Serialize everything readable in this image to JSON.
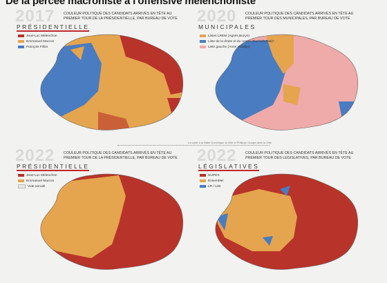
{
  "title": "De la percée macroniste à l'offensive mélenchoniste",
  "credit": "La carte à la Bâtie Dominique la Ville et Philippe Guapa dans la Ville",
  "colors": {
    "melenchon": "#b8332a",
    "macron": "#e5a44e",
    "fillon": "#4a7cc1",
    "union_gauche": "#efaaaa",
    "nupes": "#b8332a",
    "ensemble": "#e5a44e",
    "lr": "#4a7cc1",
    "vide": "#e8e8e8"
  },
  "panels": [
    {
      "year": "2017",
      "kind": "PRÉSIDENTIELLE",
      "description": "Couleur politique des candidats arrivés en tête au premier tour de la présidentielle, par bureau de vote",
      "legend": [
        {
          "label": "Jean-Luc Mélenchon",
          "color": "#b8332a"
        },
        {
          "label": "Emmanuel Macron",
          "color": "#e5a44e"
        },
        {
          "label": "François Fillon",
          "color": "#4a7cc1"
        }
      ]
    },
    {
      "year": "2020",
      "kind": "MUNICIPALES",
      "description": "Couleur politique des candidats arrivés en tête au premier tour des municipales, par bureau de vote",
      "legend": [
        {
          "label": "Listes LREM (Agnès Buzyn)",
          "color": "#e5a44e"
        },
        {
          "label": "Liste de la droite et du centre (Rachida Dati)*",
          "color": "#4a7cc1"
        },
        {
          "label": "Liste gauche (Anne Hidalgo)",
          "color": "#efaaaa"
        }
      ]
    },
    {
      "year": "2022",
      "kind": "PRÉSIDENTIELLE",
      "description": "Couleur politique des candidats arrivés en tête au premier tour de la présidentielle, par bureau de vote",
      "legend": [
        {
          "label": "Jean-Luc Mélenchon",
          "color": "#b8332a"
        },
        {
          "label": "Emmanuel Macron",
          "color": "#e5a44e"
        },
        {
          "label": "Vote annulé",
          "color": "#e8e8e8"
        }
      ]
    },
    {
      "year": "2022",
      "kind": "LÉGISLATIVES",
      "description": "Couleur politique des candidats arrivés en tête au premier tour des législatives, par bureau de vote",
      "legend": [
        {
          "label": "NUPES",
          "color": "#b8332a"
        },
        {
          "label": "Ensemble!",
          "color": "#e5a44e"
        },
        {
          "label": "LR / UDI",
          "color": "#4a7cc1"
        }
      ]
    }
  ]
}
